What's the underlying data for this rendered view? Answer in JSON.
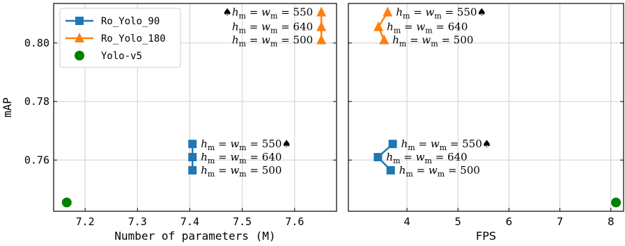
{
  "chart_data": [
    {
      "type": "line",
      "xlabel": "Number of parameters (M)",
      "ylabel": "mAP",
      "xlim": [
        7.14,
        7.68
      ],
      "ylim": [
        0.7425,
        0.8135
      ],
      "xticks": [
        7.2,
        7.3,
        7.4,
        7.5,
        7.6
      ],
      "xtick_labels": [
        "7.2",
        "7.3",
        "7.4",
        "7.5",
        "7.6"
      ],
      "yticks": [
        0.76,
        0.78,
        0.8
      ],
      "ytick_labels": [
        "0.76",
        "0.78",
        "0.80"
      ],
      "grid": true,
      "legend_position": "top-left",
      "series": [
        {
          "name": "Ro_Yolo_90",
          "color": "#1f77b4",
          "marker": "square",
          "points": [
            {
              "x": 7.405,
              "y": 0.7655
            },
            {
              "x": 7.405,
              "y": 0.761
            },
            {
              "x": 7.405,
              "y": 0.7565
            }
          ]
        },
        {
          "name": "Ro_Yolo_180",
          "color": "#ff7f0e",
          "marker": "triangle",
          "points": [
            {
              "x": 7.651,
              "y": 0.8105
            },
            {
              "x": 7.651,
              "y": 0.8055
            },
            {
              "x": 7.651,
              "y": 0.801
            }
          ]
        },
        {
          "name": "Yolo-v5",
          "color": "#008000",
          "marker": "circle",
          "points": [
            {
              "x": 7.165,
              "y": 0.7455
            }
          ]
        }
      ],
      "annotations": [
        {
          "pre": "♠",
          "post": "",
          "anchor_series": 1,
          "anchor_point": 0,
          "side": "left",
          "value": "550"
        },
        {
          "pre": "",
          "post": "",
          "anchor_series": 1,
          "anchor_point": 1,
          "side": "left",
          "value": "640"
        },
        {
          "pre": "",
          "post": "",
          "anchor_series": 1,
          "anchor_point": 2,
          "side": "left",
          "value": "500"
        },
        {
          "pre": "",
          "post": "♠",
          "anchor_series": 0,
          "anchor_point": 0,
          "side": "right",
          "value": "550"
        },
        {
          "pre": "",
          "post": "",
          "anchor_series": 0,
          "anchor_point": 1,
          "side": "right",
          "value": "640"
        },
        {
          "pre": "",
          "post": "",
          "anchor_series": 0,
          "anchor_point": 2,
          "side": "right",
          "value": "500"
        }
      ]
    },
    {
      "type": "line",
      "xlabel": "FPS",
      "ylabel": "",
      "xlim": [
        2.85,
        8.25
      ],
      "ylim": [
        0.7425,
        0.8135
      ],
      "xticks": [
        4,
        5,
        6,
        7,
        8
      ],
      "xtick_labels": [
        "4",
        "5",
        "6",
        "7",
        "8"
      ],
      "grid": true,
      "series": [
        {
          "name": "Ro_Yolo_90",
          "color": "#1f77b4",
          "marker": "square",
          "points": [
            {
              "x": 3.72,
              "y": 0.7655
            },
            {
              "x": 3.43,
              "y": 0.761
            },
            {
              "x": 3.68,
              "y": 0.7565
            }
          ]
        },
        {
          "name": "Ro_Yolo_180",
          "color": "#ff7f0e",
          "marker": "triangle",
          "points": [
            {
              "x": 3.62,
              "y": 0.8105
            },
            {
              "x": 3.44,
              "y": 0.8055
            },
            {
              "x": 3.55,
              "y": 0.801
            }
          ]
        },
        {
          "name": "Yolo-v5",
          "color": "#008000",
          "marker": "circle",
          "points": [
            {
              "x": 8.1,
              "y": 0.7455
            }
          ]
        }
      ],
      "annotations": [
        {
          "pre": "",
          "post": "♠",
          "anchor_series": 1,
          "anchor_point": 0,
          "side": "right",
          "value": "550"
        },
        {
          "pre": "",
          "post": "",
          "anchor_series": 1,
          "anchor_point": 1,
          "side": "right",
          "value": "640"
        },
        {
          "pre": "",
          "post": "",
          "anchor_series": 1,
          "anchor_point": 2,
          "side": "right",
          "value": "500"
        },
        {
          "pre": "",
          "post": "♠",
          "anchor_series": 0,
          "anchor_point": 0,
          "side": "right",
          "value": "550"
        },
        {
          "pre": "",
          "post": "",
          "anchor_series": 0,
          "anchor_point": 1,
          "side": "right",
          "value": "640"
        },
        {
          "pre": "",
          "post": "",
          "anchor_series": 0,
          "anchor_point": 2,
          "side": "right",
          "value": "500"
        }
      ]
    }
  ],
  "annotation_text": {
    "h": "h",
    "w": "w",
    "sub": "m",
    "eq": " = "
  }
}
